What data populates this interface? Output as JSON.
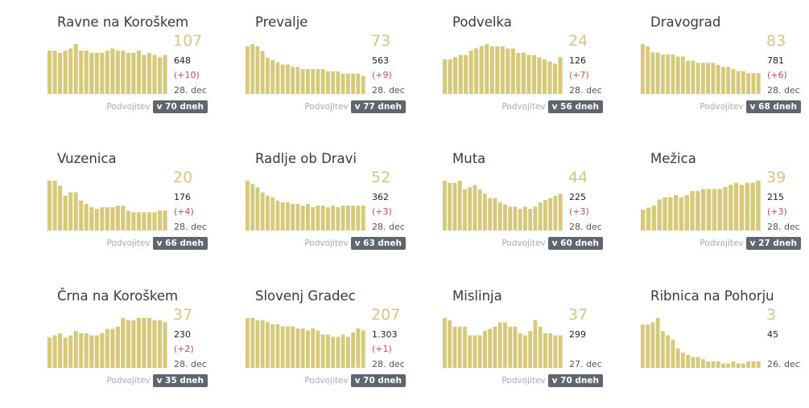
{
  "doubling_label": "Podvojitev",
  "colors": {
    "bar": "#d6c97a",
    "big_number": "#d6c586",
    "delta": "#c0524b",
    "badge": "#5f6670"
  },
  "cards": [
    {
      "name": "Ravne na Koroškem",
      "active": "107",
      "total": "648",
      "delta": "(+10)",
      "date": "28. dec",
      "doubling": "v 70 dneh",
      "trend": [
        20,
        20,
        19,
        20,
        21,
        23,
        20,
        20,
        19,
        19,
        19,
        20,
        21,
        20,
        20,
        19,
        19,
        20,
        18,
        19,
        18,
        17,
        18
      ]
    },
    {
      "name": "Prevalje",
      "active": "73",
      "total": "563",
      "delta": "(+9)",
      "date": "28. dec",
      "doubling": "v 77 dneh",
      "trend": [
        21,
        22,
        21,
        19,
        16,
        15,
        14,
        13,
        13,
        12,
        12,
        11,
        11,
        11,
        11,
        11,
        10,
        10,
        10,
        9,
        9,
        9,
        9,
        8
      ]
    },
    {
      "name": "Podvelka",
      "active": "24",
      "total": "126",
      "delta": "(+7)",
      "date": "28. dec",
      "doubling": "v 56 dneh",
      "trend": [
        16,
        16,
        17,
        18,
        18,
        20,
        21,
        22,
        23,
        22,
        22,
        22,
        21,
        21,
        19,
        19,
        18,
        18,
        17,
        16,
        15,
        14,
        17
      ]
    },
    {
      "name": "Dravograd",
      "active": "83",
      "total": "781",
      "delta": "(+6)",
      "date": "28. dec",
      "doubling": "v 68 dneh",
      "trend": [
        24,
        23,
        20,
        20,
        19,
        19,
        19,
        18,
        18,
        16,
        16,
        15,
        15,
        15,
        15,
        14,
        13,
        13,
        12,
        11,
        11,
        10,
        10,
        10
      ]
    },
    {
      "name": "Vuzenica",
      "active": "20",
      "total": "176",
      "delta": "(+4)",
      "date": "28. dec",
      "doubling": "v 66 dneh",
      "trend": [
        30,
        30,
        27,
        21,
        23,
        23,
        18,
        16,
        14,
        13,
        14,
        14,
        14,
        15,
        15,
        12,
        11,
        11,
        11,
        11,
        11,
        12,
        12
      ]
    },
    {
      "name": "Radlje ob Dravi",
      "active": "52",
      "total": "362",
      "delta": "(+3)",
      "date": "28. dec",
      "doubling": "v 63 dneh",
      "trend": [
        30,
        28,
        26,
        23,
        21,
        20,
        18,
        17,
        17,
        16,
        16,
        15,
        16,
        14,
        15,
        15,
        14,
        15,
        14,
        15,
        15,
        15,
        15,
        15
      ]
    },
    {
      "name": "Muta",
      "active": "44",
      "total": "225",
      "delta": "(+3)",
      "date": "28. dec",
      "doubling": "v 60 dneh",
      "trend": [
        23,
        22,
        22,
        23,
        19,
        20,
        21,
        19,
        17,
        15,
        15,
        13,
        12,
        11,
        11,
        10,
        11,
        10,
        11,
        13,
        14,
        15,
        16,
        17
      ]
    },
    {
      "name": "Mežica",
      "active": "39",
      "total": "215",
      "delta": "(+3)",
      "date": "28. dec",
      "doubling": "v 27 dneh",
      "trend": [
        10,
        11,
        12,
        15,
        16,
        16,
        17,
        16,
        17,
        19,
        19,
        20,
        20,
        20,
        20,
        21,
        22,
        23,
        22,
        23,
        23,
        24
      ]
    },
    {
      "name": "Črna na Koroškem",
      "active": "37",
      "total": "230",
      "delta": "(+2)",
      "date": "28. dec",
      "doubling": "v 35 dneh",
      "trend": [
        14,
        15,
        16,
        14,
        15,
        17,
        16,
        16,
        15,
        15,
        16,
        18,
        18,
        19,
        23,
        22,
        22,
        23,
        23,
        23,
        22,
        22,
        21
      ]
    },
    {
      "name": "Slovenj Gradec",
      "active": "207",
      "total": "1.303",
      "delta": "(+1)",
      "date": "28. dec",
      "doubling": "v 70 dneh",
      "trend": [
        24,
        24,
        23,
        23,
        22,
        21,
        21,
        20,
        20,
        20,
        19,
        19,
        18,
        19,
        18,
        16,
        16,
        15,
        15,
        16,
        15,
        17,
        19,
        18
      ]
    },
    {
      "name": "Mislinja",
      "active": "37",
      "total": "299",
      "delta": "",
      "date": "27. dec",
      "doubling": "v 70 dneh",
      "trend": [
        23,
        22,
        19,
        19,
        19,
        15,
        15,
        15,
        17,
        18,
        19,
        21,
        21,
        19,
        19,
        16,
        15,
        17,
        22,
        19,
        16,
        16,
        15,
        15
      ]
    },
    {
      "name": "Ribnica na Pohorju",
      "active": "3",
      "total": "45",
      "delta": "",
      "date": "26. dec",
      "doubling": "",
      "trend": [
        20,
        20,
        21,
        23,
        17,
        15,
        13,
        9,
        7,
        6,
        5,
        5,
        4,
        3,
        3,
        3,
        2,
        2,
        3,
        2,
        2,
        3,
        3,
        3
      ]
    }
  ]
}
